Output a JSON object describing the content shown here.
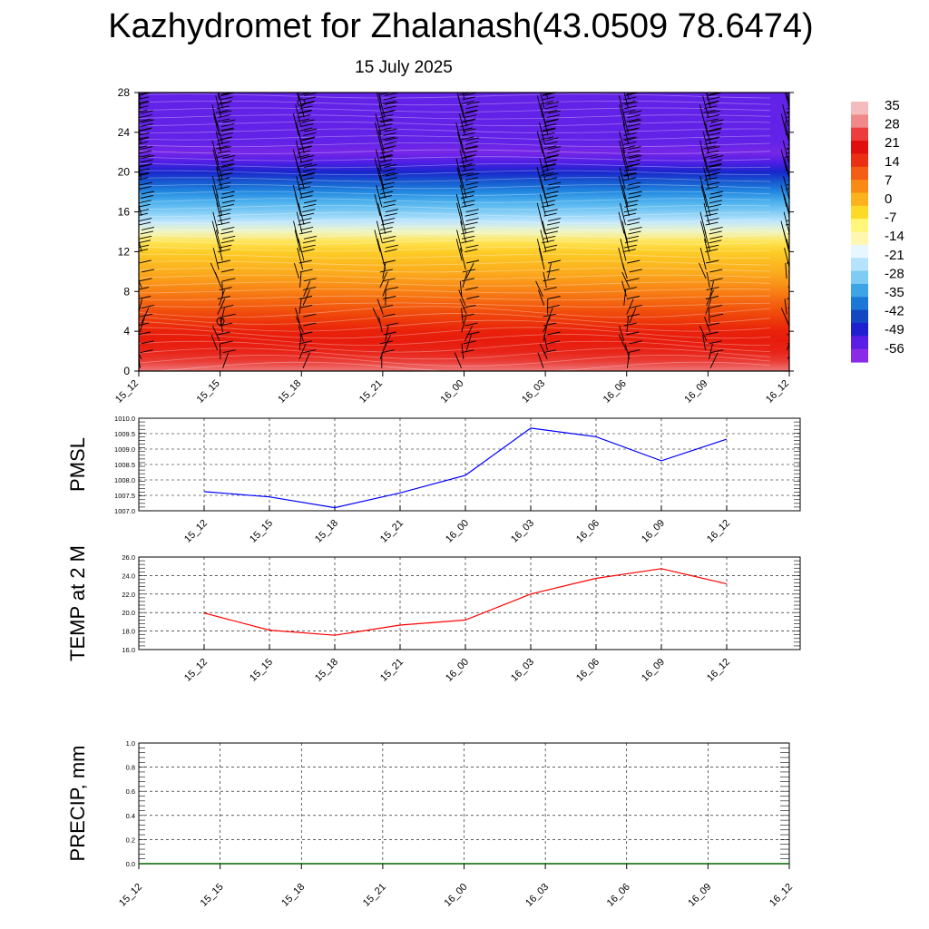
{
  "title": "Kazhydromet for Zhalanash(43.0509 78.6474)",
  "subtitle": "15 July 2025",
  "time_labels": [
    "15_12",
    "15_15",
    "15_18",
    "15_21",
    "16_00",
    "16_03",
    "16_06",
    "16_09",
    "16_12"
  ],
  "colorbar": {
    "labels": [
      "35",
      "28",
      "21",
      "14",
      "7",
      "0",
      "-7",
      "-14",
      "-21",
      "-28",
      "-35",
      "-42",
      "-49",
      "-56"
    ],
    "colors": [
      "#f4bcbc",
      "#f08a8a",
      "#ec3c3c",
      "#e10e0e",
      "#ea2f12",
      "#f45d14",
      "#f98a16",
      "#fcb21c",
      "#fdd928",
      "#fff67a",
      "#fff7b0",
      "#e8f6ff",
      "#b5e3fb",
      "#7fcbf3",
      "#3ea4e6",
      "#1b78d6",
      "#1248c2",
      "#1f1fd2",
      "#5a1fe6",
      "#8a2be8"
    ]
  },
  "chart_data": [
    {
      "type": "heatmap",
      "description_free": true,
      "x": [
        "15_12",
        "15_15",
        "15_18",
        "15_21",
        "16_00",
        "16_03",
        "16_06",
        "16_09",
        "16_12"
      ],
      "yticks": [
        0,
        4,
        8,
        12,
        16,
        20,
        24,
        28
      ],
      "ylim": [
        0,
        28
      ],
      "levels": [
        0,
        1,
        2,
        3,
        4,
        5,
        6,
        7,
        8,
        9,
        10,
        11,
        12,
        13,
        14,
        15,
        16,
        17,
        18,
        19,
        20,
        21,
        22,
        23,
        24,
        25,
        26,
        27,
        28
      ],
      "level_temps": [
        30,
        27,
        24,
        21,
        19,
        16,
        13,
        10,
        7,
        4,
        1,
        -2,
        -5,
        -9,
        -14,
        -19,
        -25,
        -30,
        -36,
        -43,
        -50,
        -55,
        -57,
        -56,
        -56,
        -56,
        -56,
        -56,
        -56
      ]
    },
    {
      "type": "line",
      "ylabel": "PMSL",
      "x": [
        "15_12",
        "15_15",
        "15_18",
        "15_21",
        "16_00",
        "16_03",
        "16_06",
        "16_09",
        "16_12"
      ],
      "yticks": [
        "1007.0",
        "1007.5",
        "1008.0",
        "1008.5",
        "1009.0",
        "1009.5",
        "1010.0"
      ],
      "ylim": [
        1007.0,
        1010.0
      ],
      "series": [
        {
          "values": [
            1007.62,
            1007.45,
            1007.1,
            1007.58,
            1008.15,
            1009.68,
            1009.4,
            1008.62,
            1009.32
          ],
          "color": "#0000ff"
        }
      ]
    },
    {
      "type": "line",
      "ylabel": "TEMP at 2 M",
      "x": [
        "15_12",
        "15_15",
        "15_18",
        "15_21",
        "16_00",
        "16_03",
        "16_06",
        "16_09",
        "16_12"
      ],
      "yticks": [
        "16.0",
        "18.0",
        "20.0",
        "22.0",
        "24.0",
        "26.0"
      ],
      "ylim": [
        16.0,
        26.0
      ],
      "series": [
        {
          "values": [
            19.95,
            18.1,
            17.55,
            18.65,
            19.2,
            22.0,
            23.7,
            24.75,
            23.1
          ],
          "color": "#ff0000"
        }
      ]
    },
    {
      "type": "line",
      "ylabel": "PRECIP, mm",
      "x": [
        "15_12",
        "15_15",
        "15_18",
        "15_21",
        "16_00",
        "16_03",
        "16_06",
        "16_09",
        "16_12"
      ],
      "yticks": [
        "0.0",
        "0.2",
        "0.4",
        "0.6",
        "0.8",
        "1.0"
      ],
      "ylim": [
        0.0,
        1.0
      ],
      "series": [
        {
          "values": [
            0,
            0,
            0,
            0,
            0,
            0,
            0,
            0,
            0
          ],
          "color": "#006400"
        }
      ]
    }
  ]
}
